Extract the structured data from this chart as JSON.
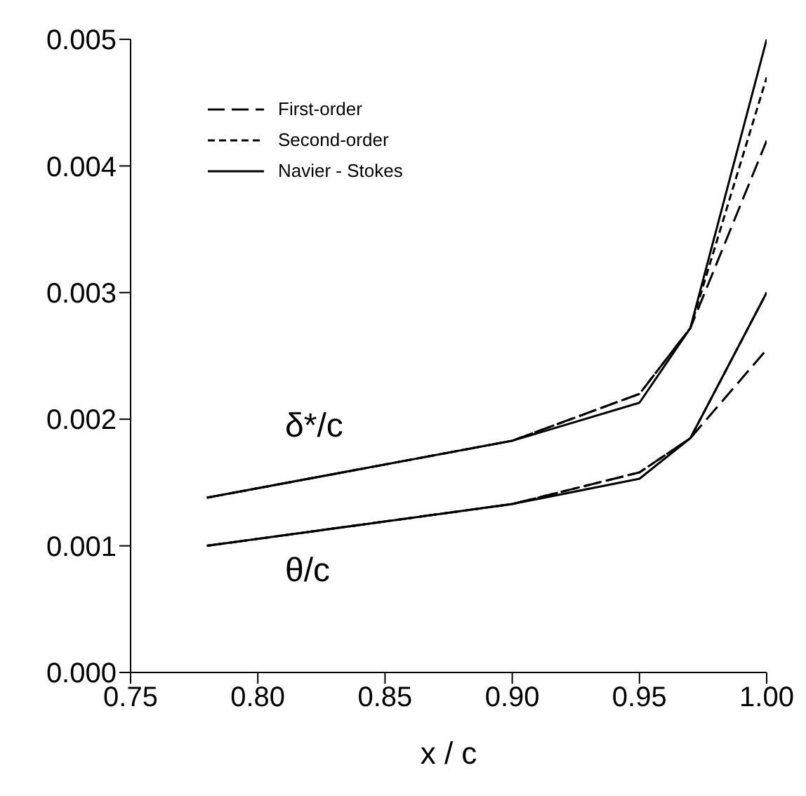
{
  "chart_data": {
    "type": "line",
    "xlabel": "x / c",
    "xlim": [
      0.75,
      1.0
    ],
    "ylim": [
      0,
      0.005
    ],
    "xticks": [
      {
        "value": 0.75,
        "label": "0.75"
      },
      {
        "value": 0.8,
        "label": "0.80"
      },
      {
        "value": 0.85,
        "label": "0.85"
      },
      {
        "value": 0.9,
        "label": "0.90"
      },
      {
        "value": 0.95,
        "label": "0.95"
      },
      {
        "value": 1.0,
        "label": "1.00"
      }
    ],
    "yticks": [
      {
        "value": 0,
        "label": "0.000"
      },
      {
        "value": 0.001,
        "label": "0.001"
      },
      {
        "value": 0.002,
        "label": "0.002"
      },
      {
        "value": 0.003,
        "label": "0.003"
      },
      {
        "value": 0.004,
        "label": "0.004"
      },
      {
        "value": 0.005,
        "label": "0.005"
      }
    ],
    "legend": "top left",
    "marker": "none",
    "x": [
      0.78,
      0.9,
      0.95,
      0.97,
      1.0
    ],
    "series": [
      {
        "name": "First-order",
        "color": "#000000",
        "line_style": "dashed",
        "values": [
          0.00138,
          0.00183,
          0.0022,
          0.00272,
          0.0042
        ]
      },
      {
        "name": "Second-order",
        "color": "#000000",
        "line_style": "dotted",
        "values": [
          0.00138,
          0.00183,
          0.0022,
          0.00272,
          0.0047
        ]
      },
      {
        "name": "Navier - Stokes",
        "color": "#000000",
        "line_style": "solid",
        "values": [
          0.00138,
          0.00183,
          0.00213,
          0.00272,
          0.005
        ]
      },
      {
        "color": "#000000",
        "line_style": "dashed",
        "values": [
          0.001,
          0.00133,
          0.00158,
          0.00185,
          0.00255
        ]
      },
      {
        "color": "#000000",
        "line_style": "dotted",
        "values": [
          0.001,
          0.00133,
          0.00158,
          0.00185,
          0.003
        ]
      },
      {
        "color": "#000000",
        "line_style": "solid",
        "values": [
          0.001,
          0.00133,
          0.00153,
          0.00185,
          0.003
        ]
      }
    ],
    "annotations": [
      "δ*/c",
      "θ/c"
    ]
  }
}
